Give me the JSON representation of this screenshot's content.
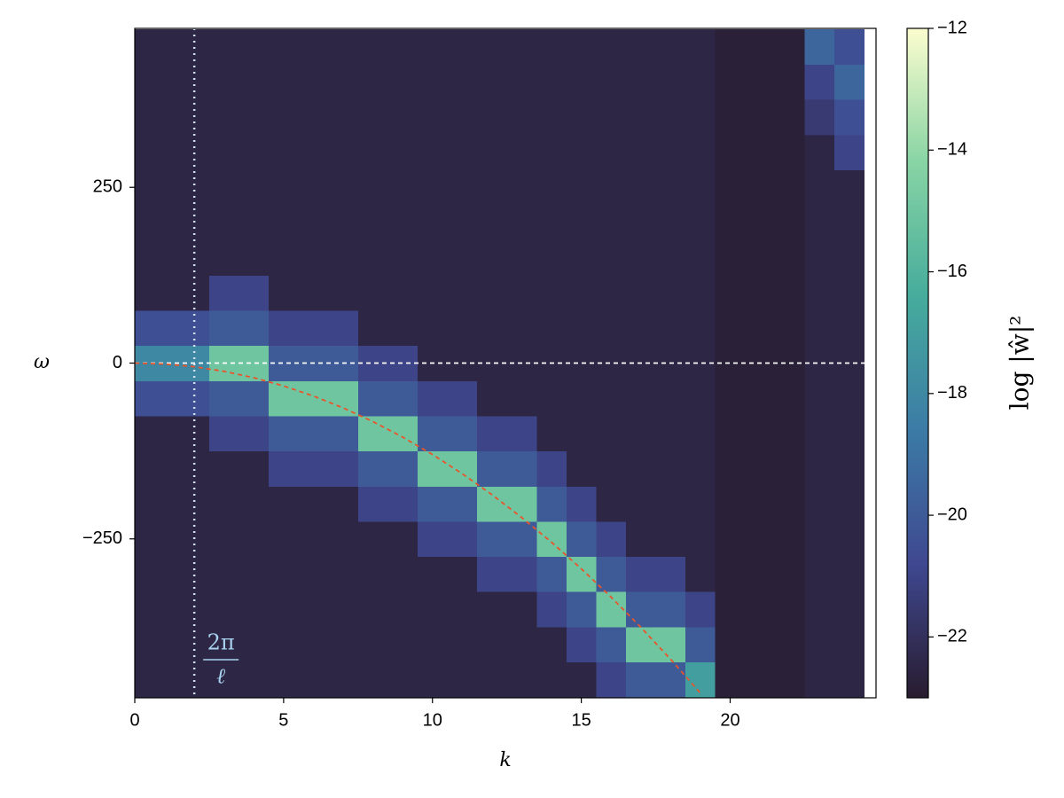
{
  "chart_data": {
    "type": "heatmap",
    "xlabel": "k",
    "ylabel": "ω",
    "colorbar_label": "log |ŵ|²",
    "x": [
      0,
      1,
      2,
      3,
      4,
      5,
      6,
      7,
      8,
      9,
      10,
      11,
      12,
      13,
      14,
      15,
      16,
      17,
      18,
      19,
      20,
      21,
      22,
      23,
      24
    ],
    "ybins": [
      -475,
      -425,
      -375,
      -325,
      -275,
      -225,
      -175,
      -125,
      -75,
      -25,
      25,
      75,
      125,
      175,
      225,
      275,
      325,
      375,
      425,
      475
    ],
    "z": [
      [
        -22.5,
        -22.5,
        -22.5,
        -22.5,
        -22.5,
        -22.5,
        -22.5,
        -22.5,
        -22.5,
        -22.5,
        -22.5,
        -22.5,
        -22.5,
        -22.5,
        -22.5,
        -22.5,
        -21,
        -20,
        -20,
        -17,
        -22.8,
        -22.8,
        -22.8,
        -22.5,
        -22.5
      ],
      [
        -22.5,
        -22.5,
        -22.5,
        -22.5,
        -22.5,
        -22.5,
        -22.5,
        -22.5,
        -22.5,
        -22.5,
        -22.5,
        -22.5,
        -22.5,
        -22.5,
        -22.5,
        -21,
        -20,
        -15,
        -15,
        -20,
        -22.8,
        -22.8,
        -22.8,
        -22.5,
        -22.5
      ],
      [
        -22.5,
        -22.5,
        -22.5,
        -22.5,
        -22.5,
        -22.5,
        -22.5,
        -22.5,
        -22.5,
        -22.5,
        -22.5,
        -22.5,
        -22.5,
        -22.5,
        -21,
        -20,
        -15,
        -20,
        -20,
        -21,
        -22.8,
        -22.8,
        -22.8,
        -22.5,
        -22.5
      ],
      [
        -22.5,
        -22.5,
        -22.5,
        -22.5,
        -22.5,
        -22.5,
        -22.5,
        -22.5,
        -22.5,
        -22.5,
        -22.5,
        -22.5,
        -21,
        -21,
        -20,
        -15,
        -20,
        -21,
        -21,
        -22.5,
        -22.8,
        -22.8,
        -22.8,
        -22.5,
        -22.5
      ],
      [
        -22.5,
        -22.5,
        -22.5,
        -22.5,
        -22.5,
        -22.5,
        -22.5,
        -22.5,
        -22.5,
        -22.5,
        -21,
        -21,
        -20,
        -20,
        -15,
        -20,
        -21,
        -22.5,
        -22.5,
        -22.5,
        -22.8,
        -22.8,
        -22.8,
        -22.5,
        -22.5
      ],
      [
        -22.5,
        -22.5,
        -22.5,
        -22.5,
        -22.5,
        -22.5,
        -22.5,
        -22.5,
        -21,
        -21,
        -20,
        -20,
        -15,
        -15,
        -20,
        -21,
        -22.5,
        -22.5,
        -22.5,
        -22.5,
        -22.8,
        -22.8,
        -22.8,
        -22.5,
        -22.5
      ],
      [
        -22.5,
        -22.5,
        -22.5,
        -22.5,
        -22.5,
        -21,
        -21,
        -21,
        -20,
        -20,
        -15,
        -15,
        -20,
        -20,
        -21,
        -22.5,
        -22.5,
        -22.5,
        -22.5,
        -22.5,
        -22.8,
        -22.8,
        -22.8,
        -22.5,
        -22.5
      ],
      [
        -22.5,
        -22.5,
        -22.5,
        -21,
        -21,
        -20,
        -20,
        -20,
        -15,
        -15,
        -20,
        -20,
        -21,
        -21,
        -22.5,
        -22.5,
        -22.5,
        -22.5,
        -22.5,
        -22.5,
        -22.8,
        -22.8,
        -22.8,
        -22.5,
        -22.5
      ],
      [
        -20.5,
        -20.5,
        -20.5,
        -20,
        -20,
        -15,
        -15,
        -15,
        -20,
        -20,
        -21,
        -21,
        -22.5,
        -22.5,
        -22.5,
        -22.5,
        -22.5,
        -22.5,
        -22.5,
        -22.5,
        -22.8,
        -22.8,
        -22.8,
        -22.5,
        -22.5
      ],
      [
        -18,
        -18,
        -18,
        -15,
        -15,
        -20,
        -20,
        -20,
        -21,
        -21,
        -22.5,
        -22.5,
        -22.5,
        -22.5,
        -22.5,
        -22.5,
        -22.5,
        -22.5,
        -22.5,
        -22.5,
        -22.8,
        -22.8,
        -22.8,
        -22.5,
        -22.5
      ],
      [
        -20.5,
        -20.5,
        -20.5,
        -20,
        -20,
        -21,
        -21,
        -21,
        -22.5,
        -22.5,
        -22.5,
        -22.5,
        -22.5,
        -22.5,
        -22.5,
        -22.5,
        -22.5,
        -22.5,
        -22.5,
        -22.5,
        -22.8,
        -22.8,
        -22.8,
        -22.5,
        -22.5
      ],
      [
        -22.5,
        -22.5,
        -22.5,
        -21,
        -21,
        -22.5,
        -22.5,
        -22.5,
        -22.5,
        -22.5,
        -22.5,
        -22.5,
        -22.5,
        -22.5,
        -22.5,
        -22.5,
        -22.5,
        -22.5,
        -22.5,
        -22.5,
        -22.8,
        -22.8,
        -22.8,
        -22.5,
        -22.5
      ],
      [
        -22.5,
        -22.5,
        -22.5,
        -22.5,
        -22.5,
        -22.5,
        -22.5,
        -22.5,
        -22.5,
        -22.5,
        -22.5,
        -22.5,
        -22.5,
        -22.5,
        -22.5,
        -22.5,
        -22.5,
        -22.5,
        -22.5,
        -22.5,
        -22.8,
        -22.8,
        -22.8,
        -22.5,
        -22.5
      ],
      [
        -22.5,
        -22.5,
        -22.5,
        -22.5,
        -22.5,
        -22.5,
        -22.5,
        -22.5,
        -22.5,
        -22.5,
        -22.5,
        -22.5,
        -22.5,
        -22.5,
        -22.5,
        -22.5,
        -22.5,
        -22.5,
        -22.5,
        -22.5,
        -22.8,
        -22.8,
        -22.8,
        -22.5,
        -22.5
      ],
      [
        -22.5,
        -22.5,
        -22.5,
        -22.5,
        -22.5,
        -22.5,
        -22.5,
        -22.5,
        -22.5,
        -22.5,
        -22.5,
        -22.5,
        -22.5,
        -22.5,
        -22.5,
        -22.5,
        -22.5,
        -22.5,
        -22.5,
        -22.5,
        -22.8,
        -22.8,
        -22.8,
        -22.5,
        -22.5
      ],
      [
        -22.5,
        -22.5,
        -22.5,
        -22.5,
        -22.5,
        -22.5,
        -22.5,
        -22.5,
        -22.5,
        -22.5,
        -22.5,
        -22.5,
        -22.5,
        -22.5,
        -22.5,
        -22.5,
        -22.5,
        -22.5,
        -22.5,
        -22.5,
        -22.8,
        -22.8,
        -22.8,
        -22.5,
        -21
      ],
      [
        -22.5,
        -22.5,
        -22.5,
        -22.5,
        -22.5,
        -22.5,
        -22.5,
        -22.5,
        -22.5,
        -22.5,
        -22.5,
        -22.5,
        -22.5,
        -22.5,
        -22.5,
        -22.5,
        -22.5,
        -22.5,
        -22.5,
        -22.5,
        -22.8,
        -22.8,
        -22.8,
        -21.5,
        -20.5
      ],
      [
        -22.5,
        -22.5,
        -22.5,
        -22.5,
        -22.5,
        -22.5,
        -22.5,
        -22.5,
        -22.5,
        -22.5,
        -22.5,
        -22.5,
        -22.5,
        -22.5,
        -22.5,
        -22.5,
        -22.5,
        -22.5,
        -22.5,
        -22.5,
        -22.8,
        -22.8,
        -22.8,
        -21,
        -19.5
      ],
      [
        -22.5,
        -22.5,
        -22.5,
        -22.5,
        -22.5,
        -22.5,
        -22.5,
        -22.5,
        -22.5,
        -22.5,
        -22.5,
        -22.5,
        -22.5,
        -22.5,
        -22.5,
        -22.5,
        -22.5,
        -22.5,
        -22.5,
        -22.5,
        -22.8,
        -22.8,
        -22.8,
        -19.5,
        -20.5
      ]
    ],
    "colormap": [
      "#281c2f",
      "#3f4890",
      "#3c7ba6",
      "#46ac9c",
      "#88d4a4",
      "#fcfdcf"
    ],
    "zlim": [
      -23,
      -12
    ],
    "zticks": [
      {
        "value": -22,
        "label": "−22"
      },
      {
        "value": -20,
        "label": "−20"
      },
      {
        "value": -18,
        "label": "−18"
      },
      {
        "value": -16,
        "label": "−16"
      },
      {
        "value": -14,
        "label": "−14"
      },
      {
        "value": -12,
        "label": "−12"
      }
    ],
    "xlim": [
      0,
      24.9
    ],
    "ylim": [
      -476,
      476
    ],
    "xticks": [
      0,
      5,
      10,
      15,
      20
    ],
    "yticks": [
      {
        "value": -250,
        "label": "−250"
      },
      0,
      250
    ],
    "curve": {
      "color": "#e8552a",
      "x": [
        0,
        1,
        2,
        3,
        4,
        5,
        6,
        7,
        8,
        9,
        10,
        11,
        12,
        13,
        14,
        15,
        16,
        17,
        18,
        19
      ],
      "y": [
        0,
        -1.3,
        -5.2,
        -11.7,
        -20.8,
        -32.5,
        -46.8,
        -63.7,
        -83.2,
        -105.3,
        -130,
        -157.3,
        -187.2,
        -219.7,
        -254.8,
        -292.5,
        -332.8,
        -375.7,
        -421.2,
        -469.3
      ]
    },
    "hline": {
      "y": 0,
      "color": "#ffffff"
    },
    "vline": {
      "x": 2,
      "color": "#cfe0f0"
    },
    "annotation": {
      "numerator": "2π",
      "denominator": "ℓ",
      "color": "#a9d3ee"
    }
  }
}
